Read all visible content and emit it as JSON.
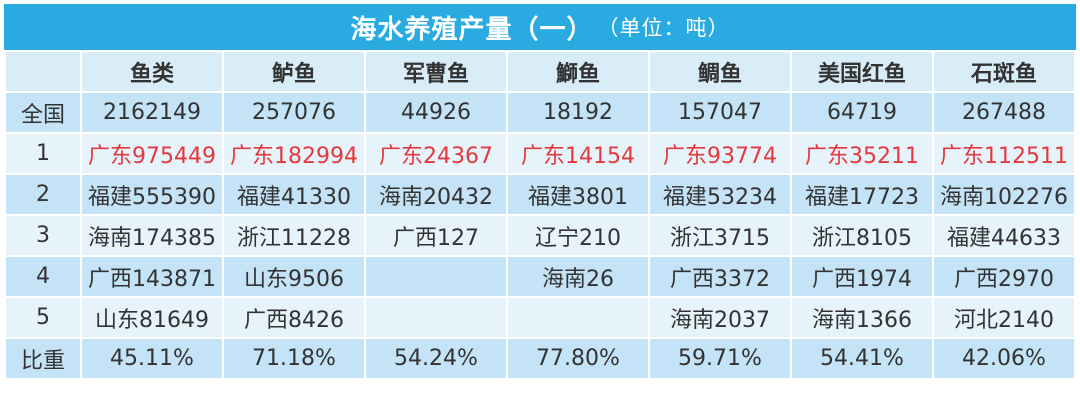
{
  "title": "海水养殖产量（一）",
  "unit": "（单位：吨）",
  "headers": [
    "",
    "鱼类",
    "鲈鱼",
    "军曹鱼",
    "鰤鱼",
    "鲷鱼",
    "美国红鱼",
    "石斑鱼"
  ],
  "rows": [
    {
      "label": "全国",
      "cells": [
        "2162149",
        "257076",
        "44926",
        "18192",
        "157047",
        "64719",
        "267488"
      ]
    },
    {
      "label": "1",
      "cells": [
        "广东975449",
        "广东182994",
        "广东24367",
        "广东14154",
        "广东93774",
        "广东35211",
        "广东112511"
      ]
    },
    {
      "label": "2",
      "cells": [
        "福建555390",
        "福建41330",
        "海南20432",
        "福建3801",
        "福建53234",
        "福建17723",
        "海南102276"
      ]
    },
    {
      "label": "3",
      "cells": [
        "海南174385",
        "浙江11228",
        "广西127",
        "辽宁210",
        "浙江3715",
        "浙江8105",
        "福建44633"
      ]
    },
    {
      "label": "4",
      "cells": [
        "广西143871",
        "山东9506",
        "",
        "海南26",
        "广西3372",
        "广西1974",
        "广西2970"
      ]
    },
    {
      "label": "5",
      "cells": [
        "山东81649",
        "广西8426",
        "",
        "",
        "海南2037",
        "海南1366",
        "河北2140"
      ]
    },
    {
      "label": "比重",
      "cells": [
        "45.11%",
        "71.18%",
        "54.24%",
        "77.80%",
        "59.71%",
        "54.41%",
        "42.06%"
      ]
    }
  ],
  "colors": {
    "title_bg": "#29abe2",
    "red_text": "#e4393c"
  }
}
